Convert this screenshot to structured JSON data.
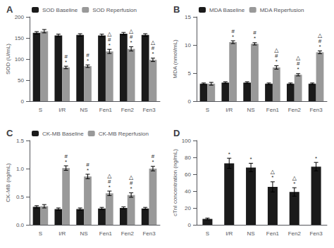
{
  "chart_data": [
    {
      "type": "bar",
      "title": "A",
      "ylabel": "SOD (U/mL)",
      "categories": [
        "S",
        "I/R",
        "NS",
        "Fen1",
        "Fen2",
        "Fen3"
      ],
      "series": [
        {
          "name": "SOD Baseline",
          "color": "#1a1a1a",
          "values": [
            162,
            156,
            157,
            156,
            160,
            157
          ],
          "errors": [
            3,
            3,
            3,
            3,
            3,
            3
          ]
        },
        {
          "name": "SOD Reperfusion",
          "color": "#999999",
          "values": [
            166,
            80,
            83,
            118,
            124,
            98
          ],
          "errors": [
            4,
            3,
            3,
            5,
            5,
            4
          ],
          "annotations": [
            null,
            "#\n*",
            "#\n*",
            "△\n#\n*",
            "△\n#\n*",
            "△\n#\n*"
          ]
        }
      ],
      "ylim": [
        0,
        200
      ],
      "yticks": [
        0,
        50,
        100,
        150,
        200
      ],
      "grid": false,
      "legend": "top"
    },
    {
      "type": "bar",
      "title": "B",
      "ylabel": "MDA (nmol/mL)",
      "categories": [
        "S",
        "I/R",
        "NS",
        "Fen1",
        "Fen2",
        "Fen3"
      ],
      "series": [
        {
          "name": "MDA Baseline",
          "color": "#1a1a1a",
          "values": [
            3.1,
            3.3,
            3.3,
            3.1,
            3.1,
            3.1
          ],
          "errors": [
            0.15,
            0.15,
            0.15,
            0.15,
            0.15,
            0.15
          ]
        },
        {
          "name": "MDA Reperfusion",
          "color": "#999999",
          "values": [
            3.1,
            10.5,
            10.2,
            6.0,
            4.7,
            8.7
          ],
          "errors": [
            0.25,
            0.25,
            0.2,
            0.3,
            0.2,
            0.25
          ],
          "annotations": [
            null,
            "#\n*",
            "#\n*",
            "△\n#\n*",
            "△\n#\n*",
            "△\n#\n*"
          ]
        }
      ],
      "ylim": [
        0,
        15
      ],
      "yticks": [
        0,
        5,
        10,
        15
      ],
      "grid": false,
      "legend": "top"
    },
    {
      "type": "bar",
      "title": "C",
      "ylabel": "CK-MB (ng/mL)",
      "categories": [
        "S",
        "I/R",
        "NS",
        "Fen1",
        "Fen2",
        "Fen3"
      ],
      "series": [
        {
          "name": "CK-MB Baseline",
          "color": "#1a1a1a",
          "values": [
            0.32,
            0.28,
            0.28,
            0.29,
            0.3,
            0.29
          ],
          "errors": [
            0.02,
            0.02,
            0.02,
            0.02,
            0.02,
            0.02
          ]
        },
        {
          "name": "CK-MB Reperfusion",
          "color": "#999999",
          "values": [
            0.33,
            1.01,
            0.86,
            0.56,
            0.53,
            1.0
          ],
          "errors": [
            0.03,
            0.04,
            0.04,
            0.04,
            0.04,
            0.04
          ],
          "annotations": [
            null,
            "#\n*",
            "#\n*",
            "△\n#\n*",
            "△\n#\n*",
            "#\n*"
          ]
        }
      ],
      "ylim": [
        0,
        1.5
      ],
      "yticks": [
        {
          "value": 0,
          "label": "0.0"
        },
        0.5,
        {
          "value": 1,
          "label": "1.0"
        },
        1.5
      ],
      "grid": false,
      "legend": "top"
    },
    {
      "type": "bar",
      "title": "D",
      "ylabel": "cTnI concentration (ng/mL)",
      "categories": [
        "S",
        "I/R",
        "NS",
        "Fen1",
        "Fen2",
        "Fen3"
      ],
      "series": [
        {
          "color": "#1a1a1a",
          "values": [
            7,
            73,
            68,
            45,
            39,
            69
          ],
          "errors": [
            1,
            6,
            5,
            6,
            5,
            5
          ],
          "annotations": [
            null,
            "*",
            "*",
            "△\n*",
            "△\n*",
            "*"
          ]
        }
      ],
      "ylim": [
        0,
        100
      ],
      "yticks": [
        0,
        20,
        40,
        60,
        80,
        100
      ],
      "grid": false
    }
  ]
}
